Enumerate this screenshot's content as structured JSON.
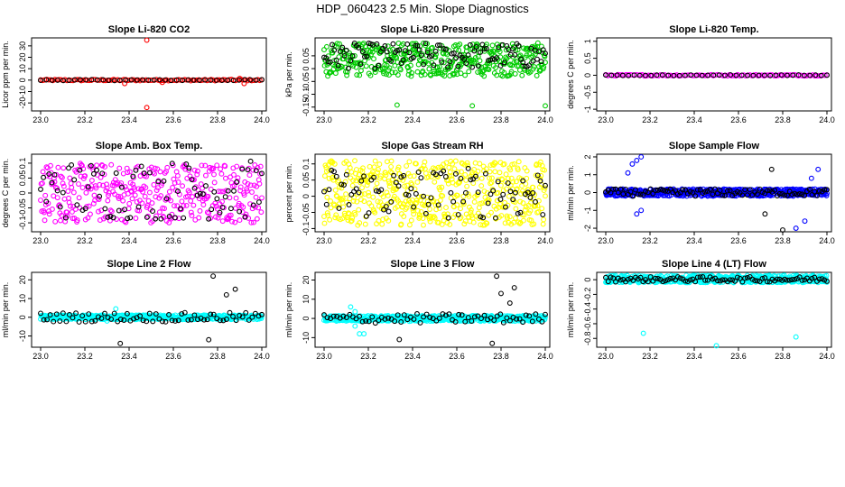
{
  "figure_title": "HDP_060423  2.5 Min. Slope Diagnostics",
  "chart_data": [
    {
      "type": "scatter",
      "title": "Slope Li-820 CO2",
      "ylabel": "Licor ppm per min.",
      "xlim": [
        23.0,
        24.0
      ],
      "ylim": [
        -27,
        37
      ],
      "xticks": [
        "23.0",
        "23.2",
        "23.4",
        "23.6",
        "23.8",
        "24.0"
      ],
      "yticks": [
        -20,
        -10,
        0,
        10,
        20,
        30
      ],
      "series": [
        {
          "name": "primary",
          "color": "#ff0000",
          "band": [
            -0.6,
            0.6
          ],
          "n": 110,
          "outliers": [
            [
              23.48,
              35
            ],
            [
              23.48,
              -24
            ],
            [
              23.38,
              -3
            ],
            [
              23.55,
              -2
            ],
            [
              23.92,
              -3
            ],
            [
              23.9,
              1.5
            ]
          ]
        },
        {
          "name": "secondary",
          "color": "#000000",
          "band": [
            -0.4,
            0.4
          ],
          "n": 40,
          "outliers": []
        }
      ]
    },
    {
      "type": "scatter",
      "title": "Slope Li-820 Pressure",
      "ylabel": "kPa per min.",
      "xlim": [
        23.0,
        24.0
      ],
      "ylim": [
        -0.165,
        0.12
      ],
      "xticks": [
        "23.0",
        "23.2",
        "23.4",
        "23.6",
        "23.8",
        "24.0"
      ],
      "yticks": [
        -0.15,
        -0.1,
        -0.05,
        0.0,
        0.05
      ],
      "series": [
        {
          "name": "primary",
          "color": "#00cc00",
          "band": [
            -0.03,
            0.1
          ],
          "n": 420,
          "outliers": [
            [
              23.33,
              -0.142
            ],
            [
              23.67,
              -0.145
            ],
            [
              24.0,
              -0.145
            ]
          ]
        },
        {
          "name": "secondary",
          "color": "#000000",
          "band": [
            0.0,
            0.1
          ],
          "n": 110,
          "outliers": []
        }
      ]
    },
    {
      "type": "scatter",
      "title": "Slope Li-820 Temp.",
      "ylabel": "degrees C per min.",
      "xlim": [
        23.0,
        24.0
      ],
      "ylim": [
        -1.05,
        1.1
      ],
      "xticks": [
        "23.0",
        "23.2",
        "23.4",
        "23.6",
        "23.8",
        "24.0"
      ],
      "yticks": [
        -1.0,
        -0.5,
        0.0,
        0.5,
        1.0
      ],
      "series": [
        {
          "name": "primary",
          "color": "#ff00ff",
          "band": [
            -0.02,
            0.02
          ],
          "n": 110,
          "outliers": []
        },
        {
          "name": "secondary",
          "color": "#000000",
          "band": [
            -0.01,
            0.01
          ],
          "n": 40,
          "outliers": []
        }
      ]
    },
    {
      "type": "scatter",
      "title": "Slope Amb. Box Temp.",
      "ylabel": "degrees C per min.",
      "xlim": [
        23.0,
        24.0
      ],
      "ylim": [
        -0.13,
        0.13
      ],
      "xticks": [
        "23.0",
        "23.2",
        "23.4",
        "23.6",
        "23.8",
        "24.0"
      ],
      "yticks": [
        -0.1,
        -0.05,
        0.0,
        0.05,
        0.1
      ],
      "series": [
        {
          "name": "primary",
          "color": "#ff00ff",
          "band": [
            -0.1,
            0.1
          ],
          "n": 380,
          "outliers": []
        },
        {
          "name": "secondary",
          "color": "#000000",
          "band": [
            -0.09,
            0.11
          ],
          "n": 80,
          "outliers": []
        }
      ]
    },
    {
      "type": "scatter",
      "title": "Slope Gas Stream RH",
      "ylabel": "percent per min.",
      "xlim": [
        23.0,
        24.0
      ],
      "ylim": [
        -0.11,
        0.13
      ],
      "xticks": [
        "23.0",
        "23.2",
        "23.4",
        "23.6",
        "23.8",
        "24.0"
      ],
      "yticks": [
        -0.1,
        -0.05,
        0.0,
        0.05,
        0.1
      ],
      "series": [
        {
          "name": "primary",
          "color": "#ffff00",
          "band": [
            -0.09,
            0.11
          ],
          "n": 520,
          "outliers": []
        },
        {
          "name": "secondary",
          "color": "#000000",
          "band": [
            -0.07,
            0.09
          ],
          "n": 90,
          "outliers": []
        }
      ]
    },
    {
      "type": "scatter",
      "title": "Slope Sample Flow",
      "ylabel": "ml/min per min.",
      "xlim": [
        23.0,
        24.0
      ],
      "ylim": [
        -2.2,
        2.15
      ],
      "xticks": [
        "23.0",
        "23.2",
        "23.4",
        "23.6",
        "23.8",
        "24.0"
      ],
      "yticks": [
        -2,
        -1,
        0,
        1,
        2
      ],
      "series": [
        {
          "name": "primary",
          "color": "#0000ff",
          "band": [
            -0.2,
            0.2
          ],
          "n": 520,
          "outliers": [
            [
              23.1,
              1.1
            ],
            [
              23.12,
              1.6
            ],
            [
              23.14,
              1.8
            ],
            [
              23.16,
              2.0
            ],
            [
              23.14,
              -1.2
            ],
            [
              23.16,
              -1.0
            ],
            [
              23.96,
              1.3
            ],
            [
              23.93,
              0.8
            ],
            [
              23.9,
              -1.6
            ],
            [
              23.86,
              -2.0
            ]
          ]
        },
        {
          "name": "secondary",
          "color": "#000000",
          "band": [
            -0.2,
            0.2
          ],
          "n": 90,
          "outliers": [
            [
              23.75,
              1.3
            ],
            [
              23.8,
              -2.1
            ],
            [
              23.72,
              -1.2
            ]
          ]
        }
      ]
    },
    {
      "type": "scatter",
      "title": "Slope Line 2 Flow",
      "ylabel": "ml/min per min.",
      "xlim": [
        23.0,
        24.0
      ],
      "ylim": [
        -16,
        24
      ],
      "xticks": [
        "23.0",
        "23.2",
        "23.4",
        "23.6",
        "23.8",
        "24.0"
      ],
      "yticks": [
        -10,
        0,
        10,
        20
      ],
      "series": [
        {
          "name": "primary",
          "color": "#00ffff",
          "band": [
            -1.2,
            1.2
          ],
          "n": 520,
          "outliers": [
            [
              23.34,
              4.5
            ],
            [
              23.3,
              -2
            ]
          ]
        },
        {
          "name": "secondary",
          "color": "#000000",
          "band": [
            -2.5,
            2.5
          ],
          "n": 70,
          "outliers": [
            [
              23.78,
              22
            ],
            [
              23.84,
              12
            ],
            [
              23.88,
              15
            ],
            [
              23.76,
              -12
            ],
            [
              23.36,
              -14
            ]
          ]
        }
      ]
    },
    {
      "type": "scatter",
      "title": "Slope Line 3 Flow",
      "ylabel": "ml/min per min.",
      "xlim": [
        23.0,
        24.0
      ],
      "ylim": [
        -15,
        24
      ],
      "xticks": [
        "23.0",
        "23.2",
        "23.4",
        "23.6",
        "23.8",
        "24.0"
      ],
      "yticks": [
        -10,
        0,
        10,
        20
      ],
      "series": [
        {
          "name": "primary",
          "color": "#00ffff",
          "band": [
            -1.5,
            1.5
          ],
          "n": 520,
          "outliers": [
            [
              23.12,
              6
            ],
            [
              23.14,
              -4
            ],
            [
              23.16,
              -8
            ],
            [
              23.18,
              -8
            ],
            [
              23.14,
              3.5
            ]
          ]
        },
        {
          "name": "secondary",
          "color": "#000000",
          "band": [
            -2.5,
            2.5
          ],
          "n": 70,
          "outliers": [
            [
              23.78,
              22
            ],
            [
              23.84,
              8
            ],
            [
              23.86,
              16
            ],
            [
              23.8,
              13
            ],
            [
              23.76,
              -13
            ],
            [
              23.34,
              -11
            ]
          ]
        }
      ]
    },
    {
      "type": "scatter",
      "title": "Slope Line 4 (LT) Flow",
      "ylabel": "ml/min per min.",
      "xlim": [
        23.0,
        24.0
      ],
      "ylim": [
        -0.92,
        0.1
      ],
      "xticks": [
        "23.0",
        "23.2",
        "23.4",
        "23.6",
        "23.8",
        "24.0"
      ],
      "yticks": [
        -0.8,
        -0.6,
        -0.4,
        -0.2,
        0.0
      ],
      "series": [
        {
          "name": "primary",
          "color": "#00ffff",
          "band": [
            -0.04,
            0.06
          ],
          "n": 520,
          "outliers": [
            [
              23.17,
              -0.73
            ],
            [
              23.5,
              -0.9
            ],
            [
              23.86,
              -0.78
            ]
          ]
        },
        {
          "name": "secondary",
          "color": "#000000",
          "band": [
            -0.03,
            0.04
          ],
          "n": 90,
          "outliers": []
        }
      ]
    }
  ]
}
